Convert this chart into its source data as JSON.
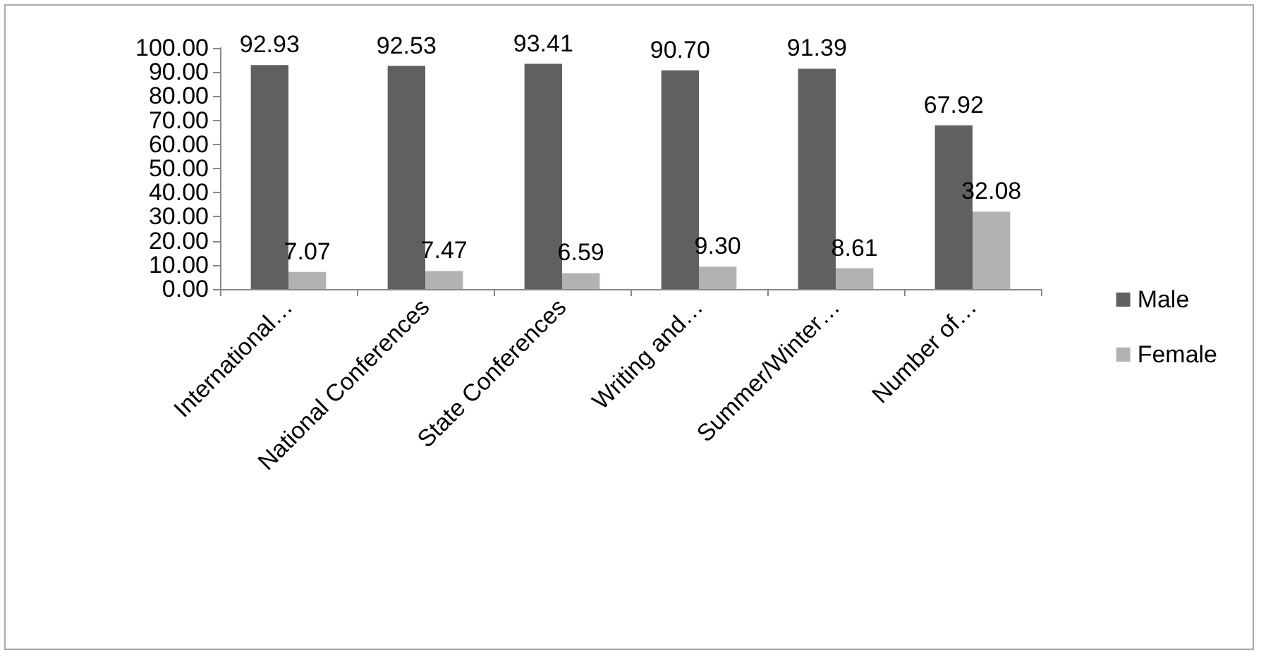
{
  "chart_data": {
    "type": "bar",
    "categories": [
      "International…",
      "National Conferences",
      "State Conferences",
      "Writing and…",
      "Summer/Winter…",
      "Number of…"
    ],
    "series": [
      {
        "name": "Male",
        "color": "#606060",
        "values": [
          92.93,
          92.53,
          93.41,
          90.7,
          91.39,
          67.92
        ],
        "value_labels": [
          "92.93",
          "92.53",
          "93.41",
          "90.70",
          "91.39",
          "67.92"
        ]
      },
      {
        "name": "Female",
        "color": "#b2b2b2",
        "values": [
          7.07,
          7.47,
          6.59,
          9.3,
          8.61,
          32.08
        ],
        "value_labels": [
          "7.07",
          "7.47",
          "6.59",
          "9.30",
          "8.61",
          "32.08"
        ]
      }
    ],
    "ylim": [
      0,
      100
    ],
    "yticks": [
      {
        "value": 0,
        "label": "0.00"
      },
      {
        "value": 10,
        "label": "10.00"
      },
      {
        "value": 20,
        "label": "20.00"
      },
      {
        "value": 30,
        "label": "30.00"
      },
      {
        "value": 40,
        "label": "40.00"
      },
      {
        "value": 50,
        "label": "50.00"
      },
      {
        "value": 60,
        "label": "60.00"
      },
      {
        "value": 70,
        "label": "70.00"
      },
      {
        "value": 80,
        "label": "80.00"
      },
      {
        "value": 90,
        "label": "90.00"
      },
      {
        "value": 100,
        "label": "100.00"
      }
    ],
    "grid": false,
    "legend": "right"
  }
}
